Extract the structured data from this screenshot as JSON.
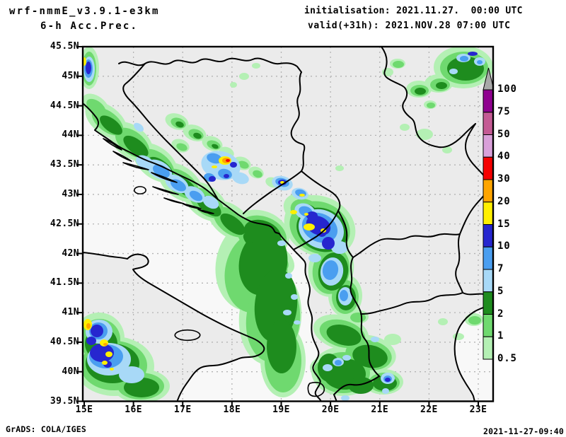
{
  "header": {
    "model": "wrf-nmmE_v3.9.1-e3km",
    "product": "6-h Acc.Prec.",
    "init_line": "initialisation: 2021.11.27.  00:00 UTC",
    "valid_line": "valid(+31h): 2021.NOV.28 07:00 UTC"
  },
  "footer": {
    "grads_credit": "GrADS: COLA/IGES",
    "timestamp": "2021-11-27-09:40"
  },
  "axes": {
    "lat_labels": [
      "45.5N",
      "45N",
      "44.5N",
      "44N",
      "43.5N",
      "43N",
      "42.5N",
      "42N",
      "41.5N",
      "41N",
      "40.5N",
      "40N",
      "39.5N"
    ],
    "lon_labels": [
      "15E",
      "16E",
      "17E",
      "18E",
      "19E",
      "20E",
      "21E",
      "22E",
      "23E"
    ]
  },
  "legend": {
    "boundaries_top_to_bottom": [
      "100",
      "75",
      "50",
      "40",
      "30",
      "20",
      "15",
      "10",
      "7",
      "5",
      "2",
      "1",
      "0.5"
    ],
    "segment_colors_top_to_bottom": [
      "#8f008f",
      "#c45a94",
      "#d9a0d9",
      "#f50000",
      "#ffa500",
      "#fff000",
      "#2626cf",
      "#4a9ef0",
      "#a8d9f7",
      "#1e8c1e",
      "#6fd96f",
      "#b4f0b4"
    ],
    "overflow_color": "#a8a8a8"
  },
  "map": {
    "land_color": "#ebebeb",
    "sea_color": "#f8f8f8",
    "gridline_color": "#b3b3b3",
    "border_color": "#000000"
  }
}
